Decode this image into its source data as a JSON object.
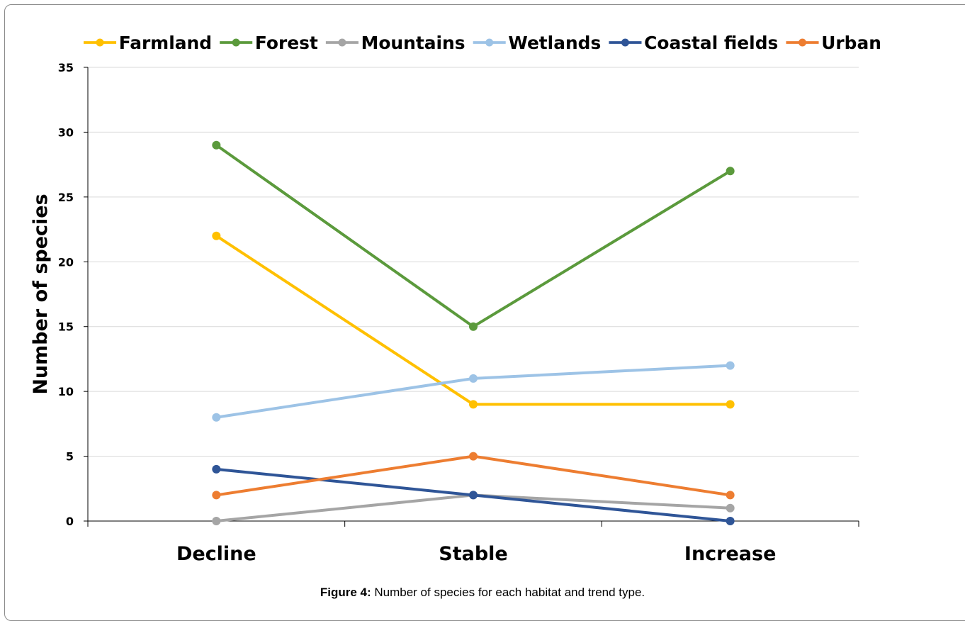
{
  "chart_data": {
    "type": "line",
    "categories": [
      "Decline",
      "Stable",
      "Increase"
    ],
    "series": [
      {
        "name": "Farmland",
        "values": [
          22,
          9,
          9
        ],
        "color": "#FFC000"
      },
      {
        "name": "Forest",
        "values": [
          29,
          15,
          27
        ],
        "color": "#5B9A3C"
      },
      {
        "name": "Mountains",
        "values": [
          0,
          2,
          1
        ],
        "color": "#A5A5A5"
      },
      {
        "name": "Wetlands",
        "values": [
          8,
          11,
          12
        ],
        "color": "#9DC3E6"
      },
      {
        "name": "Coastal fields",
        "values": [
          4,
          2,
          0
        ],
        "color": "#2F5597"
      },
      {
        "name": "Urban",
        "values": [
          2,
          5,
          2
        ],
        "color": "#ED7D31"
      }
    ],
    "ylabel": "Number of species",
    "xlabel": "",
    "ylim": [
      0,
      35
    ],
    "yticks": [
      0,
      5,
      10,
      15,
      20,
      25,
      30,
      35
    ],
    "grid": true,
    "legend_position": "top"
  },
  "caption": {
    "lead": "Figure 4:",
    "text": " Number of species for each habitat and trend type."
  }
}
